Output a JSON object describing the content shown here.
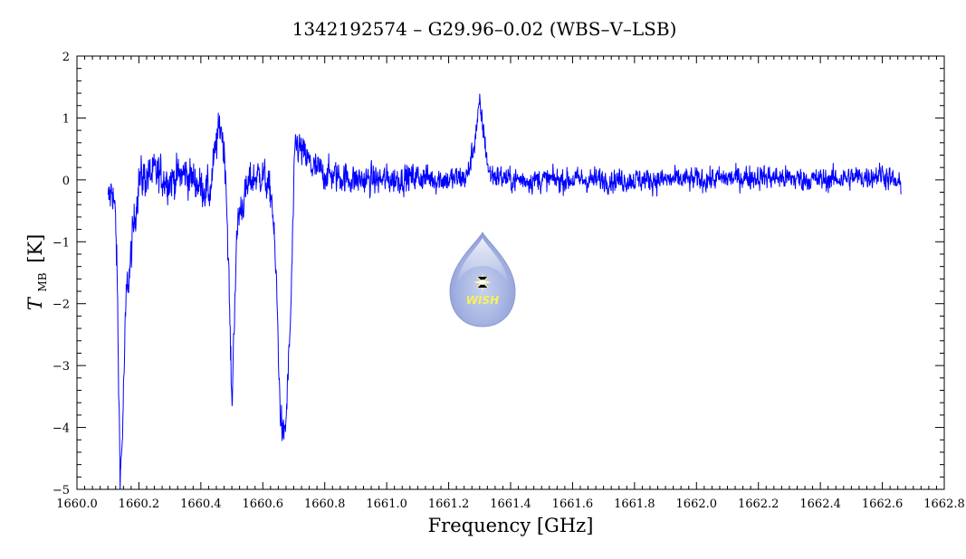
{
  "chart_data": {
    "type": "line",
    "title": "1342192574 – G29.96–0.02 (WBS–V–LSB)",
    "xlabel": "Frequency [GHz]",
    "ylabel": {
      "symbol": "T",
      "subscript": "MB",
      "unit": "[K]"
    },
    "xlim": [
      1660.0,
      1662.8
    ],
    "ylim": [
      -5,
      2
    ],
    "x_ticks": [
      1660.0,
      1660.2,
      1660.4,
      1660.6,
      1660.8,
      1661.0,
      1661.2,
      1661.4,
      1661.6,
      1661.8,
      1662.0,
      1662.2,
      1662.4,
      1662.6,
      1662.8
    ],
    "x_tick_labels": [
      "1660.0",
      "1660.2",
      "1660.4",
      "1660.6",
      "1660.8",
      "1661.0",
      "1661.2",
      "1661.4",
      "1661.6",
      "1661.8",
      "1662.0",
      "1662.2",
      "1662.4",
      "1662.6",
      "1662.8"
    ],
    "y_ticks": [
      -5,
      -4,
      -3,
      -2,
      -1,
      0,
      1,
      2
    ],
    "y_tick_labels": [
      "−5",
      "−4",
      "−3",
      "−2",
      "−1",
      "0",
      "1",
      "2"
    ],
    "grid": false,
    "series": [
      {
        "color": "#0000ff",
        "x_range": [
          1660.1,
          1662.66
        ],
        "profile": [
          [
            1660.1,
            -0.4
          ],
          [
            1660.115,
            -0.1
          ],
          [
            1660.125,
            -0.7
          ],
          [
            1660.13,
            -1.6
          ],
          [
            1660.135,
            -3.5
          ],
          [
            1660.14,
            -4.7
          ],
          [
            1660.145,
            -4.4
          ],
          [
            1660.15,
            -3.5
          ],
          [
            1660.155,
            -2.6
          ],
          [
            1660.16,
            -1.8
          ],
          [
            1660.17,
            -1.5
          ],
          [
            1660.18,
            -0.9
          ],
          [
            1660.2,
            0.0
          ],
          [
            1660.25,
            0.1
          ],
          [
            1660.3,
            0.0
          ],
          [
            1660.35,
            0.1
          ],
          [
            1660.4,
            -0.1
          ],
          [
            1660.43,
            -0.2
          ],
          [
            1660.45,
            0.6
          ],
          [
            1660.465,
            0.9
          ],
          [
            1660.48,
            0.2
          ],
          [
            1660.49,
            -1.5
          ],
          [
            1660.5,
            -3.7
          ],
          [
            1660.51,
            -1.8
          ],
          [
            1660.52,
            -0.6
          ],
          [
            1660.56,
            0.0
          ],
          [
            1660.6,
            0.1
          ],
          [
            1660.63,
            -0.3
          ],
          [
            1660.645,
            -1.8
          ],
          [
            1660.655,
            -3.6
          ],
          [
            1660.665,
            -4.2
          ],
          [
            1660.675,
            -3.9
          ],
          [
            1660.69,
            -2.2
          ],
          [
            1660.7,
            -0.2
          ],
          [
            1660.705,
            0.6
          ],
          [
            1660.72,
            0.5
          ],
          [
            1660.76,
            0.2
          ],
          [
            1660.8,
            0.1
          ],
          [
            1660.9,
            0.0
          ],
          [
            1661.0,
            0.0
          ],
          [
            1661.1,
            0.05
          ],
          [
            1661.2,
            0.0
          ],
          [
            1661.26,
            0.05
          ],
          [
            1661.28,
            0.5
          ],
          [
            1661.3,
            1.2
          ],
          [
            1661.315,
            0.7
          ],
          [
            1661.33,
            0.1
          ],
          [
            1661.4,
            0.0
          ],
          [
            1661.6,
            0.0
          ],
          [
            1661.8,
            0.0
          ],
          [
            1662.0,
            0.0
          ],
          [
            1662.2,
            0.05
          ],
          [
            1662.4,
            0.0
          ],
          [
            1662.55,
            0.05
          ],
          [
            1662.6,
            0.1
          ],
          [
            1662.66,
            -0.1
          ]
        ],
        "noise_rms": [
          [
            1660.1,
            0.3
          ],
          [
            1660.8,
            0.22
          ],
          [
            1661.4,
            0.16
          ],
          [
            1662.66,
            0.16
          ]
        ]
      }
    ]
  },
  "logo": {
    "text": "WISH"
  }
}
